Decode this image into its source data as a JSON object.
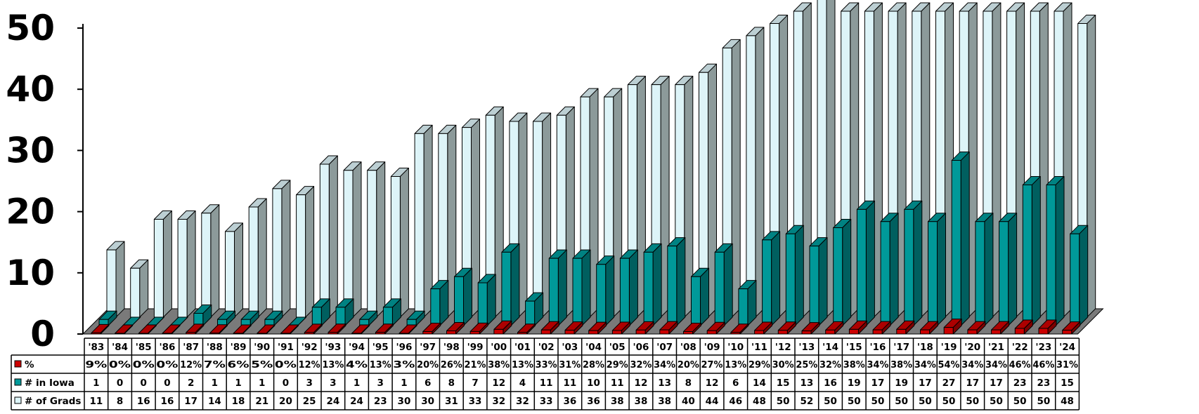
{
  "chart_data": {
    "type": "bar",
    "title": "",
    "xlabel": "",
    "ylabel": "",
    "ylim": [
      0,
      50
    ],
    "yticks": [
      0,
      10,
      20,
      30,
      40,
      50
    ],
    "grid": false,
    "legend_placement": "data-table-left",
    "categories": [
      "'83",
      "'84",
      "'85",
      "'86",
      "'87",
      "'88",
      "'89",
      "'90",
      "'91",
      "'92",
      "'93",
      "'94",
      "'95",
      "'96",
      "'97",
      "'98",
      "'99",
      "'00",
      "'01",
      "'02",
      "'03",
      "'04",
      "'05",
      "'06",
      "'07",
      "'08",
      "'09",
      "'10",
      "'11",
      "'12",
      "'13",
      "'14",
      "'15",
      "'16",
      "'17",
      "'18",
      "'19",
      "'20",
      "'21",
      "'22",
      "'23",
      "'24"
    ],
    "series": [
      {
        "name": "%",
        "color": "#cc0000",
        "labels": [
          "9%",
          "0%",
          "0%",
          "0%",
          "12%",
          "7%",
          "6%",
          "5%",
          "0%",
          "12%",
          "13%",
          "4%",
          "13%",
          "3%",
          "20%",
          "26%",
          "21%",
          "38%",
          "13%",
          "33%",
          "31%",
          "28%",
          "29%",
          "32%",
          "34%",
          "20%",
          "27%",
          "13%",
          "29%",
          "30%",
          "25%",
          "32%",
          "38%",
          "34%",
          "38%",
          "34%",
          "54%",
          "34%",
          "34%",
          "46%",
          "46%",
          "31%"
        ],
        "values": [
          9,
          0,
          0,
          0,
          12,
          7,
          6,
          5,
          0,
          12,
          13,
          4,
          13,
          3,
          20,
          26,
          21,
          38,
          13,
          33,
          31,
          28,
          29,
          32,
          34,
          20,
          27,
          13,
          29,
          30,
          25,
          32,
          38,
          34,
          38,
          34,
          54,
          34,
          34,
          46,
          46,
          31
        ]
      },
      {
        "name": "# in Iowa",
        "color": "#009999",
        "values": [
          1,
          0,
          0,
          0,
          2,
          1,
          1,
          1,
          0,
          3,
          3,
          1,
          3,
          1,
          6,
          8,
          7,
          12,
          4,
          11,
          11,
          10,
          11,
          12,
          13,
          8,
          12,
          6,
          14,
          15,
          13,
          16,
          19,
          17,
          19,
          17,
          27,
          17,
          17,
          23,
          23,
          15
        ]
      },
      {
        "name": "# of Grads",
        "color": "#ddf4f8",
        "values": [
          11,
          8,
          16,
          16,
          17,
          14,
          18,
          21,
          20,
          25,
          24,
          24,
          23,
          30,
          30,
          31,
          33,
          32,
          32,
          33,
          36,
          36,
          38,
          38,
          38,
          40,
          44,
          46,
          48,
          50,
          52,
          50,
          50,
          50,
          50,
          50,
          50,
          50,
          50,
          50,
          50,
          48
        ]
      }
    ]
  }
}
